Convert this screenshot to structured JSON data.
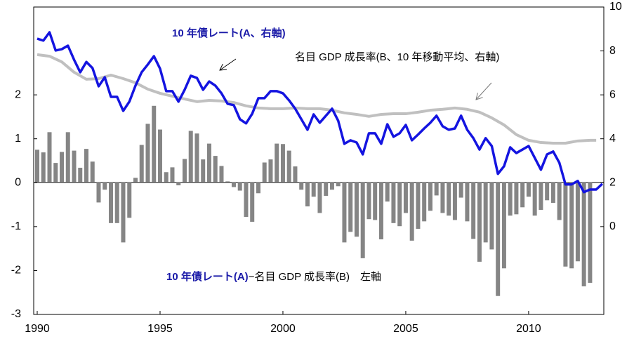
{
  "chart_data": {
    "type": "bar",
    "xlim": [
      1989.857,
      2013.06
    ],
    "xticks": [
      1990,
      1995,
      2000,
      2005,
      2010
    ],
    "ylim": [
      -3,
      4
    ],
    "yticks": [
      -3,
      -2,
      -1,
      0,
      1,
      2
    ],
    "y2lim": [
      -4,
      10
    ],
    "y2ticks": [
      0,
      2,
      4,
      6,
      8,
      10
    ],
    "annotations": [
      "10 年債レート(A、右軸)",
      "名目 GDP 成長率(B、10 年移動平均、右軸)",
      "10 年債レート(A)",
      "−名目 GDP 成長率(B)　左軸"
    ],
    "series": [
      {
        "type": "bar",
        "color": "#858585",
        "x": [
          1990,
          1990.25,
          1990.5,
          1990.75,
          1991,
          1991.25,
          1991.5,
          1991.75,
          1992,
          1992.25,
          1992.5,
          1992.75,
          1993,
          1993.25,
          1993.5,
          1993.75,
          1994,
          1994.25,
          1994.5,
          1994.75,
          1995,
          1995.25,
          1995.5,
          1995.75,
          1996,
          1996.25,
          1996.5,
          1996.75,
          1997,
          1997.25,
          1997.5,
          1997.75,
          1998,
          1998.25,
          1998.5,
          1998.75,
          1999,
          1999.25,
          1999.5,
          1999.75,
          2000,
          2000.25,
          2000.5,
          2000.75,
          2001,
          2001.25,
          2001.5,
          2001.75,
          2002,
          2002.25,
          2002.5,
          2002.75,
          2003,
          2003.25,
          2003.5,
          2003.75,
          2004,
          2004.25,
          2004.5,
          2004.75,
          2005,
          2005.25,
          2005.5,
          2005.75,
          2006,
          2006.25,
          2006.5,
          2006.75,
          2007,
          2007.25,
          2007.5,
          2007.75,
          2008,
          2008.25,
          2008.5,
          2008.75,
          2009,
          2009.25,
          2009.5,
          2009.75,
          2010,
          2010.25,
          2010.5,
          2010.75,
          2011,
          2011.25,
          2011.5,
          2011.75,
          2012,
          2012.25,
          2012.5
        ],
        "values": [
          0.75,
          0.69,
          1.15,
          0.45,
          0.7,
          1.15,
          0.73,
          0.34,
          0.77,
          0.48,
          -0.45,
          -0.16,
          -0.92,
          -0.92,
          -1.36,
          -0.8,
          0.11,
          0.86,
          1.34,
          1.75,
          1.21,
          0.24,
          0.35,
          -0.06,
          0.54,
          1.18,
          1.12,
          0.53,
          0.89,
          0.61,
          0.38,
          0.03,
          -0.1,
          -0.18,
          -0.78,
          -0.89,
          -0.24,
          0.46,
          0.53,
          0.89,
          0.88,
          0.73,
          0.37,
          -0.16,
          -0.54,
          -0.32,
          -0.69,
          -0.3,
          -0.16,
          -0.08,
          -1.36,
          -1.12,
          -1.23,
          -1.72,
          -0.83,
          -0.85,
          -1.29,
          -0.43,
          -0.92,
          -0.99,
          -0.69,
          -1.32,
          -1.05,
          -0.88,
          -0.64,
          -0.29,
          -0.69,
          -0.75,
          -0.85,
          -0.34,
          -0.88,
          -1.28,
          -1.8,
          -1.36,
          -1.52,
          -2.58,
          -1.95,
          -0.75,
          -0.72,
          -0.56,
          -0.32,
          -0.75,
          -0.62,
          -0.4,
          -0.46,
          -0.85,
          -1.91,
          -1.95,
          -1.79,
          -2.36,
          -2.28
        ]
      },
      {
        "type": "line",
        "axis": "y2",
        "color": "#1414e0",
        "x": [
          1990,
          1990.25,
          1990.5,
          1990.75,
          1991,
          1991.25,
          1991.5,
          1991.75,
          1992,
          1992.25,
          1992.5,
          1992.75,
          1993,
          1993.25,
          1993.5,
          1993.75,
          1994,
          1994.25,
          1994.5,
          1994.75,
          1995,
          1995.25,
          1995.5,
          1995.75,
          1996,
          1996.25,
          1996.5,
          1996.75,
          1997,
          1997.25,
          1997.5,
          1997.75,
          1998,
          1998.25,
          1998.5,
          1998.75,
          1999,
          1999.25,
          1999.5,
          1999.75,
          2000,
          2000.25,
          2000.5,
          2000.75,
          2001,
          2001.25,
          2001.5,
          2001.75,
          2002,
          2002.25,
          2002.5,
          2002.75,
          2003,
          2003.25,
          2003.5,
          2003.75,
          2004,
          2004.25,
          2004.5,
          2004.75,
          2005,
          2005.25,
          2005.5,
          2005.75,
          2006,
          2006.25,
          2006.5,
          2006.75,
          2007,
          2007.25,
          2007.5,
          2007.75,
          2008,
          2008.25,
          2008.5,
          2008.75,
          2009,
          2009.25,
          2009.5,
          2009.75,
          2010,
          2010.25,
          2010.5,
          2010.75,
          2011,
          2011.25,
          2011.5,
          2011.75,
          2012,
          2012.25,
          2012.5,
          2012.75,
          2013
        ],
        "values": [
          8.56,
          8.47,
          8.85,
          8.02,
          8.08,
          8.24,
          7.6,
          7.03,
          7.5,
          7.22,
          6.39,
          6.8,
          5.91,
          5.91,
          5.27,
          5.69,
          6.42,
          7.03,
          7.38,
          7.76,
          7.19,
          6.17,
          6.17,
          5.69,
          6.23,
          6.87,
          6.77,
          6.23,
          6.61,
          6.42,
          6.07,
          5.59,
          5.53,
          4.89,
          4.7,
          5.14,
          5.85,
          5.85,
          6.17,
          6.17,
          6.07,
          5.75,
          5.37,
          4.89,
          4.41,
          5.11,
          4.73,
          5.05,
          5.37,
          4.82,
          3.77,
          3.93,
          3.83,
          3.29,
          4.25,
          4.25,
          3.77,
          4.66,
          4.09,
          4.25,
          4.63,
          3.93,
          4.19,
          4.47,
          4.73,
          5.05,
          4.57,
          4.41,
          4.47,
          5.05,
          4.41,
          4.03,
          3.51,
          4.03,
          3.67,
          2.4,
          2.75,
          3.61,
          3.35,
          3.51,
          3.67,
          3.13,
          2.59,
          3.29,
          3.42,
          2.91,
          1.92,
          1.92,
          2.08,
          1.57,
          1.69,
          1.69,
          1.95
        ]
      },
      {
        "type": "line",
        "axis": "y2",
        "color": "#c0c0c0",
        "x": [
          1990,
          1990.5,
          1991,
          1991.5,
          1992,
          1992.5,
          1993,
          1993.5,
          1994,
          1994.5,
          1995,
          1995.5,
          1996,
          1996.5,
          1997,
          1997.5,
          1998,
          1998.5,
          1999,
          1999.5,
          2000,
          2000.5,
          2001,
          2001.5,
          2002,
          2002.5,
          2003,
          2003.5,
          2004,
          2004.5,
          2005,
          2005.5,
          2006,
          2006.5,
          2007,
          2007.5,
          2008,
          2008.5,
          2009,
          2009.5,
          2010,
          2010.5,
          2011,
          2011.5,
          2012,
          2012.5,
          2012.75
        ],
        "values": [
          7.83,
          7.76,
          7.5,
          7.03,
          6.71,
          6.74,
          6.9,
          6.74,
          6.55,
          6.26,
          6.07,
          5.94,
          5.81,
          5.69,
          5.75,
          5.72,
          5.65,
          5.5,
          5.4,
          5.37,
          5.37,
          5.4,
          5.37,
          5.37,
          5.3,
          5.18,
          5.11,
          5.02,
          5.11,
          5.14,
          5.14,
          5.21,
          5.3,
          5.34,
          5.4,
          5.34,
          5.21,
          4.95,
          4.63,
          4.19,
          3.93,
          3.83,
          3.8,
          3.8,
          3.9,
          3.93,
          3.93
        ]
      }
    ]
  }
}
